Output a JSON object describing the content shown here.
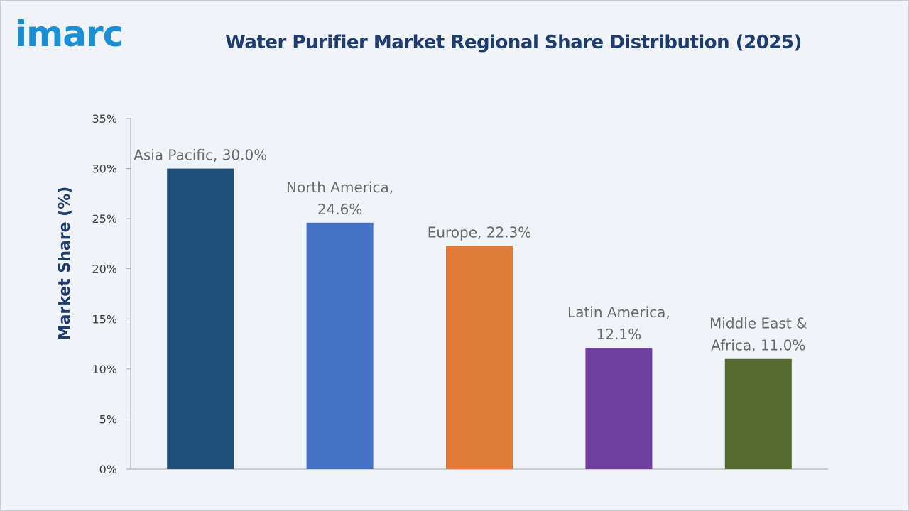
{
  "brand": {
    "logo_text": "imarc",
    "logo_color": "#1b8fd6"
  },
  "chart_data": {
    "type": "bar",
    "title": "Water Purifier Market Regional Share Distribution (2025)",
    "ylabel": "Market Share (%)",
    "xlabel": "",
    "ylim": [
      0,
      35
    ],
    "yticks": [
      0,
      5,
      10,
      15,
      20,
      25,
      30,
      35
    ],
    "ytick_labels": [
      "0%",
      "5%",
      "10%",
      "15%",
      "20%",
      "25%",
      "30%",
      "35%"
    ],
    "grid": false,
    "legend": "none",
    "categories": [
      "Asia Pacific",
      "North America",
      "Europe",
      "Latin America",
      "Middle East & Africa"
    ],
    "values": [
      30.0,
      24.6,
      22.3,
      12.1,
      11.0
    ],
    "data_labels": [
      [
        "Asia Pacific, 30.0%"
      ],
      [
        "North America,",
        "24.6%"
      ],
      [
        "Europe, 22.3%"
      ],
      [
        "Latin America,",
        "12.1%"
      ],
      [
        "Middle East &",
        "Africa, 11.0%"
      ]
    ],
    "colors": [
      "#1f4e79",
      "#4472c4",
      "#e07b39",
      "#7040a0",
      "#556b2f"
    ]
  }
}
